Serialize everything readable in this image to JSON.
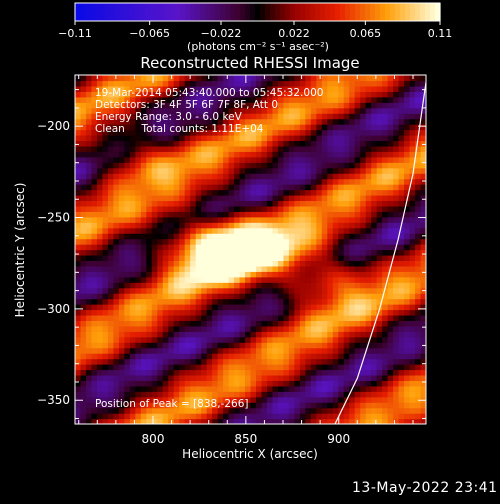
{
  "chart_data": {
    "type": "heatmap",
    "title": "Reconstructed RHESSI Image",
    "xlabel": "Heliocentric X (arcsec)",
    "ylabel": "Heliocentric Y (arcsec)",
    "xlim": [
      758,
      947
    ],
    "ylim": [
      -363,
      -172
    ],
    "xticks": [
      800,
      850,
      900
    ],
    "yticks": [
      -200,
      -250,
      -300,
      -350
    ],
    "colorbar": {
      "ticks": [
        "−0.11",
        "−0.065",
        "−0.022",
        "0.022",
        "0.065",
        "0.11"
      ],
      "tick_values": [
        -0.11,
        -0.065,
        -0.022,
        0.022,
        0.065,
        0.11
      ],
      "range": [
        -0.11,
        0.11
      ],
      "units": "(photons cm⁻² s⁻¹ asec⁻²)"
    },
    "annotations": [
      "19-Mar-2014 05:43:40.000 to 05:45:32.000",
      "Detectors: 3F 4F 5F 6F 7F 8F, Att 0",
      "Energy Range: 3.0 - 6.0 keV",
      "Clean     Total counts: 1.11E+04"
    ],
    "peak_label": "Position of Peak = [838,-266]",
    "peak": {
      "x": 838,
      "y": -266,
      "value": 0.11
    },
    "stripe_angle_deg": 29,
    "stripe_period_arcsec": 56,
    "blobs": [
      {
        "x": 838,
        "y": -266,
        "amp": 0.12,
        "sx": 22,
        "sy": 12
      },
      {
        "x": 890,
        "y": -282,
        "amp": 0.06,
        "sx": 18,
        "sy": 12
      },
      {
        "x": 790,
        "y": -215,
        "amp": 0.04,
        "sx": 16,
        "sy": 10
      }
    ],
    "limb_curve": [
      [
        898,
        -363
      ],
      [
        910,
        -338
      ],
      [
        922,
        -300
      ],
      [
        932,
        -262
      ],
      [
        940,
        -226
      ],
      [
        945,
        -190
      ],
      [
        947,
        -176
      ]
    ],
    "grid": false
  },
  "footer": {
    "timestamp": "13-May-2022 23:41"
  }
}
